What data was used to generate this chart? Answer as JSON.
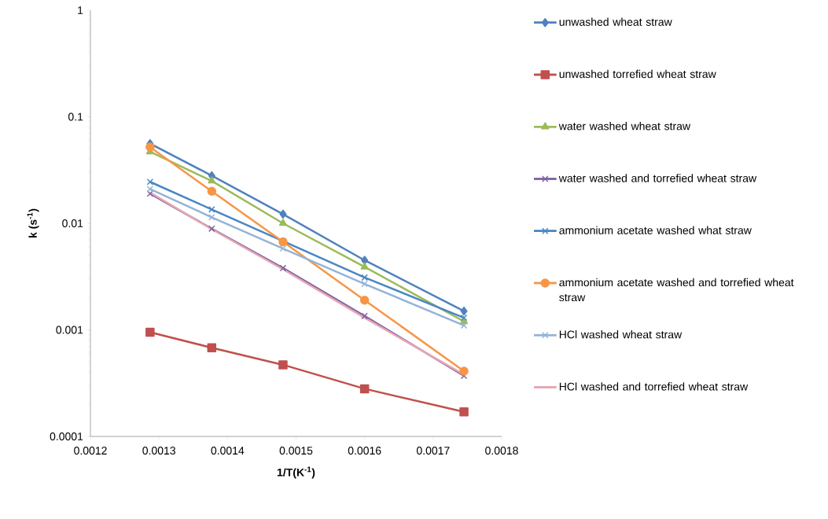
{
  "chart_data": {
    "type": "line",
    "xlabel": "1/T(K$^{-1}$)",
    "ylabel": "k (s$^{-1}$)",
    "log": "y",
    "x": [
      0.001287,
      0.001377,
      0.001481,
      0.0016,
      0.001745
    ],
    "xlim": [
      0.0012,
      0.0018
    ],
    "xticks": [
      0.0012,
      0.0013,
      0.0014,
      0.0015,
      0.0016,
      0.0017,
      0.0018
    ],
    "ylim": [
      0.0001,
      1
    ],
    "yticks": [
      0.0001,
      0.001,
      0.01,
      0.1,
      1
    ],
    "grid": false,
    "legend": "right",
    "line_style": "solid",
    "series": [
      {
        "name": "unwashed wheat straw",
        "color": "#4f81bd",
        "marker": "diamond",
        "values": [
          0.056,
          0.028,
          0.0122,
          0.0045,
          0.0015
        ]
      },
      {
        "name": "unwashed torrefied wheat straw",
        "color": "#c0504d",
        "marker": "square",
        "values": [
          0.00095,
          0.00068,
          0.00047,
          0.00028,
          0.00017
        ]
      },
      {
        "name": "water washed wheat straw",
        "color": "#9bbb59",
        "marker": "triangle",
        "values": [
          0.047,
          0.025,
          0.01,
          0.0039,
          0.0012
        ]
      },
      {
        "name": "water washed and torrefied wheat straw",
        "color": "#8064a2",
        "marker": "cross",
        "values": [
          0.019,
          0.0089,
          0.0038,
          0.00135,
          0.00037
        ]
      },
      {
        "name": "ammonium acetate washed what straw",
        "color": "#4a86c4",
        "marker": "cross",
        "values": [
          0.0245,
          0.0135,
          0.0068,
          0.0031,
          0.0013
        ]
      },
      {
        "name": "ammonium acetate washed and torrefied wheat straw",
        "color": "#f79646",
        "marker": "circle",
        "values": [
          0.052,
          0.02,
          0.0067,
          0.0019,
          0.00041
        ]
      },
      {
        "name": "HCl washed wheat straw",
        "color": "#95b3d7",
        "marker": "cross",
        "values": [
          0.021,
          0.0114,
          0.0058,
          0.0027,
          0.0011
        ]
      },
      {
        "name": "HCl washed and torrefied wheat straw",
        "color": "#e6a6b4",
        "marker": "none",
        "values": [
          0.0195,
          0.0088,
          0.0037,
          0.0013,
          0.00038
        ]
      }
    ]
  }
}
